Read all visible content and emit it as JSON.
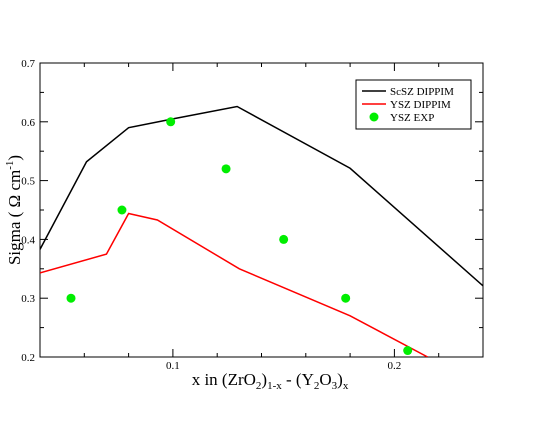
{
  "chart_data": {
    "type": "line",
    "title": "",
    "xlabel": {
      "prefix": "x in (ZrO",
      "sub1": "2",
      "mid1": ")",
      "sub2": "1-x",
      "mid2": " - (Y",
      "sub3": "2",
      "mid3": "O",
      "sub4": "3",
      "mid4": ")",
      "sub5": "x"
    },
    "ylabel": {
      "text": "Sigma ( Ω  cm",
      "sup": "-1",
      "suffix": ")"
    },
    "xlim": [
      0.04,
      0.24
    ],
    "ylim": [
      0.2,
      0.7
    ],
    "xticks": [
      {
        "value": 0.1,
        "label": "0.1"
      },
      {
        "value": 0.2,
        "label": "0.2"
      }
    ],
    "yticks": [
      {
        "value": 0.2,
        "label": "0.2"
      },
      {
        "value": 0.3,
        "label": "0.3"
      },
      {
        "value": 0.4,
        "label": "0.4"
      },
      {
        "value": 0.5,
        "label": "0.5"
      },
      {
        "value": 0.6,
        "label": "0.6"
      },
      {
        "value": 0.7,
        "label": "0.7"
      }
    ],
    "grid": false,
    "legend_position": "top-right",
    "series": [
      {
        "name": "ScSZ DIPPIM",
        "kind": "line",
        "color": "#000000",
        "points": [
          [
            0.04,
            0.383
          ],
          [
            0.061,
            0.532
          ],
          [
            0.08,
            0.59
          ],
          [
            0.1,
            0.605
          ],
          [
            0.129,
            0.626
          ],
          [
            0.18,
            0.521
          ],
          [
            0.24,
            0.321
          ]
        ]
      },
      {
        "name": "YSZ DIPPIM",
        "kind": "line",
        "color": "#ff0000",
        "points": [
          [
            0.04,
            0.343
          ],
          [
            0.07,
            0.375
          ],
          [
            0.08,
            0.444
          ],
          [
            0.093,
            0.433
          ],
          [
            0.13,
            0.35
          ],
          [
            0.18,
            0.27
          ],
          [
            0.215,
            0.2
          ]
        ]
      },
      {
        "name": "YSZ EXP",
        "kind": "scatter",
        "color": "#00ee00",
        "points": [
          [
            0.054,
            0.3
          ],
          [
            0.077,
            0.45
          ],
          [
            0.099,
            0.6
          ],
          [
            0.124,
            0.52
          ],
          [
            0.15,
            0.4
          ],
          [
            0.178,
            0.3
          ],
          [
            0.206,
            0.211
          ]
        ]
      }
    ]
  }
}
